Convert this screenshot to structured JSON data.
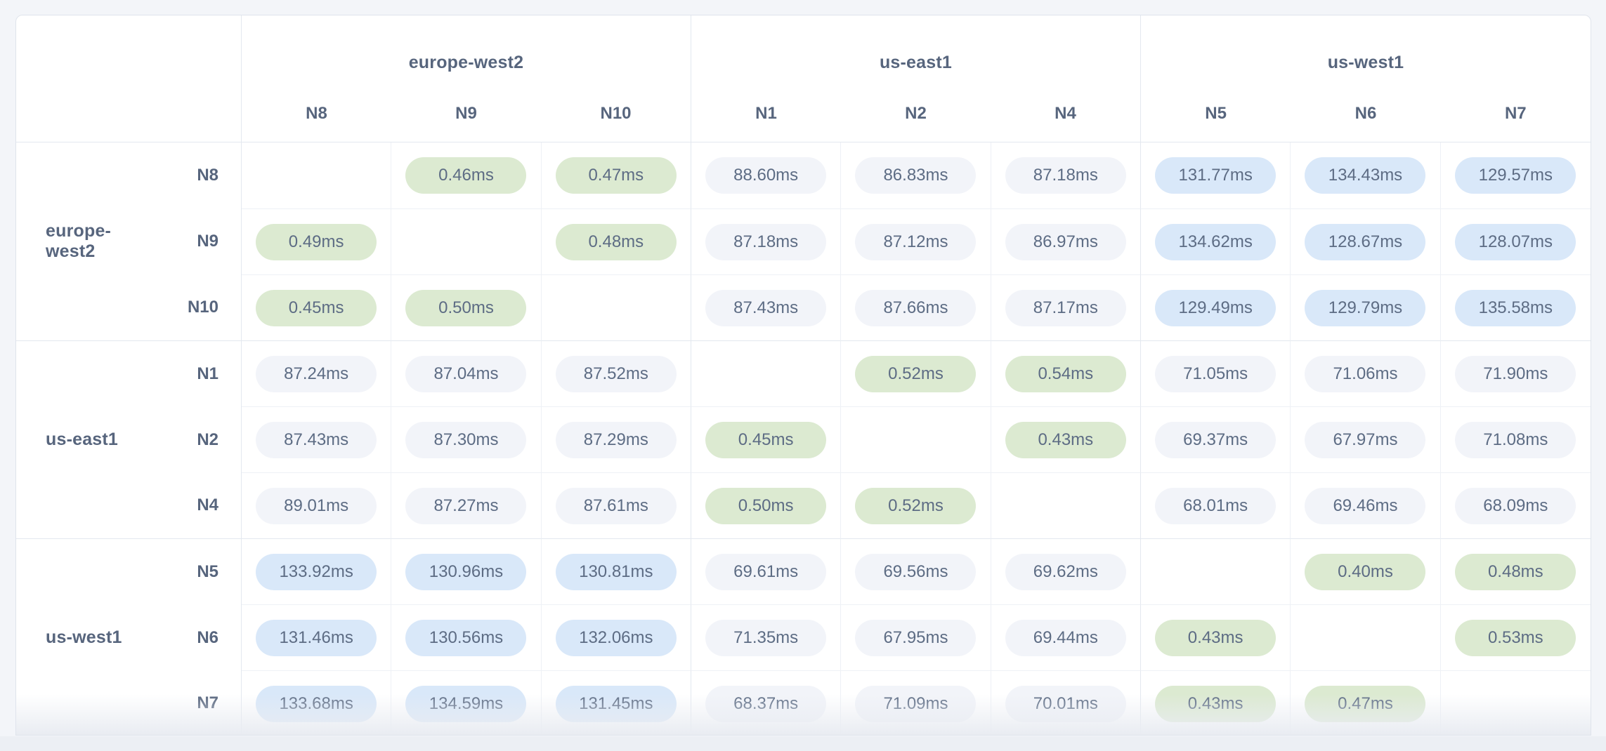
{
  "colors": {
    "page_bg": "#f3f5f9",
    "card_border": "#dfe4ec",
    "grid_line": "#eef1f6",
    "group_line": "#e3e8ef",
    "header_text": "#57657d",
    "value_text": "#5d6c84",
    "badge_green": "#dcead1",
    "badge_gray": "#f2f4f9",
    "badge_blue": "#d9e8f9"
  },
  "column_groups": [
    {
      "region": "europe-west2",
      "nodes": [
        "N8",
        "N9",
        "N10"
      ]
    },
    {
      "region": "us-east1",
      "nodes": [
        "N1",
        "N2",
        "N4"
      ]
    },
    {
      "region": "us-west1",
      "nodes": [
        "N5",
        "N6",
        "N7"
      ]
    }
  ],
  "row_groups": [
    {
      "region": "europe-west2",
      "rows": [
        {
          "node": "N8",
          "cells": [
            {
              "text": "",
              "tier": "self"
            },
            {
              "text": "0.46ms",
              "tier": "low"
            },
            {
              "text": "0.47ms",
              "tier": "low"
            },
            {
              "text": "88.60ms",
              "tier": "mid"
            },
            {
              "text": "86.83ms",
              "tier": "mid"
            },
            {
              "text": "87.18ms",
              "tier": "mid"
            },
            {
              "text": "131.77ms",
              "tier": "high"
            },
            {
              "text": "134.43ms",
              "tier": "high"
            },
            {
              "text": "129.57ms",
              "tier": "high"
            }
          ]
        },
        {
          "node": "N9",
          "cells": [
            {
              "text": "0.49ms",
              "tier": "low"
            },
            {
              "text": "",
              "tier": "self"
            },
            {
              "text": "0.48ms",
              "tier": "low"
            },
            {
              "text": "87.18ms",
              "tier": "mid"
            },
            {
              "text": "87.12ms",
              "tier": "mid"
            },
            {
              "text": "86.97ms",
              "tier": "mid"
            },
            {
              "text": "134.62ms",
              "tier": "high"
            },
            {
              "text": "128.67ms",
              "tier": "high"
            },
            {
              "text": "128.07ms",
              "tier": "high"
            }
          ]
        },
        {
          "node": "N10",
          "cells": [
            {
              "text": "0.45ms",
              "tier": "low"
            },
            {
              "text": "0.50ms",
              "tier": "low"
            },
            {
              "text": "",
              "tier": "self"
            },
            {
              "text": "87.43ms",
              "tier": "mid"
            },
            {
              "text": "87.66ms",
              "tier": "mid"
            },
            {
              "text": "87.17ms",
              "tier": "mid"
            },
            {
              "text": "129.49ms",
              "tier": "high"
            },
            {
              "text": "129.79ms",
              "tier": "high"
            },
            {
              "text": "135.58ms",
              "tier": "high"
            }
          ]
        }
      ]
    },
    {
      "region": "us-east1",
      "rows": [
        {
          "node": "N1",
          "cells": [
            {
              "text": "87.24ms",
              "tier": "mid"
            },
            {
              "text": "87.04ms",
              "tier": "mid"
            },
            {
              "text": "87.52ms",
              "tier": "mid"
            },
            {
              "text": "",
              "tier": "self"
            },
            {
              "text": "0.52ms",
              "tier": "low"
            },
            {
              "text": "0.54ms",
              "tier": "low"
            },
            {
              "text": "71.05ms",
              "tier": "mid"
            },
            {
              "text": "71.06ms",
              "tier": "mid"
            },
            {
              "text": "71.90ms",
              "tier": "mid"
            }
          ]
        },
        {
          "node": "N2",
          "cells": [
            {
              "text": "87.43ms",
              "tier": "mid"
            },
            {
              "text": "87.30ms",
              "tier": "mid"
            },
            {
              "text": "87.29ms",
              "tier": "mid"
            },
            {
              "text": "0.45ms",
              "tier": "low"
            },
            {
              "text": "",
              "tier": "self"
            },
            {
              "text": "0.43ms",
              "tier": "low"
            },
            {
              "text": "69.37ms",
              "tier": "mid"
            },
            {
              "text": "67.97ms",
              "tier": "mid"
            },
            {
              "text": "71.08ms",
              "tier": "mid"
            }
          ]
        },
        {
          "node": "N4",
          "cells": [
            {
              "text": "89.01ms",
              "tier": "mid"
            },
            {
              "text": "87.27ms",
              "tier": "mid"
            },
            {
              "text": "87.61ms",
              "tier": "mid"
            },
            {
              "text": "0.50ms",
              "tier": "low"
            },
            {
              "text": "0.52ms",
              "tier": "low"
            },
            {
              "text": "",
              "tier": "self"
            },
            {
              "text": "68.01ms",
              "tier": "mid"
            },
            {
              "text": "69.46ms",
              "tier": "mid"
            },
            {
              "text": "68.09ms",
              "tier": "mid"
            }
          ]
        }
      ]
    },
    {
      "region": "us-west1",
      "rows": [
        {
          "node": "N5",
          "cells": [
            {
              "text": "133.92ms",
              "tier": "high"
            },
            {
              "text": "130.96ms",
              "tier": "high"
            },
            {
              "text": "130.81ms",
              "tier": "high"
            },
            {
              "text": "69.61ms",
              "tier": "mid"
            },
            {
              "text": "69.56ms",
              "tier": "mid"
            },
            {
              "text": "69.62ms",
              "tier": "mid"
            },
            {
              "text": "",
              "tier": "self"
            },
            {
              "text": "0.40ms",
              "tier": "low"
            },
            {
              "text": "0.48ms",
              "tier": "low"
            }
          ]
        },
        {
          "node": "N6",
          "cells": [
            {
              "text": "131.46ms",
              "tier": "high"
            },
            {
              "text": "130.56ms",
              "tier": "high"
            },
            {
              "text": "132.06ms",
              "tier": "high"
            },
            {
              "text": "71.35ms",
              "tier": "mid"
            },
            {
              "text": "67.95ms",
              "tier": "mid"
            },
            {
              "text": "69.44ms",
              "tier": "mid"
            },
            {
              "text": "0.43ms",
              "tier": "low"
            },
            {
              "text": "",
              "tier": "self"
            },
            {
              "text": "0.53ms",
              "tier": "low"
            }
          ]
        },
        {
          "node": "N7",
          "cells": [
            {
              "text": "133.68ms",
              "tier": "high"
            },
            {
              "text": "134.59ms",
              "tier": "high"
            },
            {
              "text": "131.45ms",
              "tier": "high"
            },
            {
              "text": "68.37ms",
              "tier": "mid"
            },
            {
              "text": "71.09ms",
              "tier": "mid"
            },
            {
              "text": "70.01ms",
              "tier": "mid"
            },
            {
              "text": "0.43ms",
              "tier": "low"
            },
            {
              "text": "0.47ms",
              "tier": "low"
            },
            {
              "text": "",
              "tier": "self"
            }
          ]
        }
      ]
    }
  ]
}
